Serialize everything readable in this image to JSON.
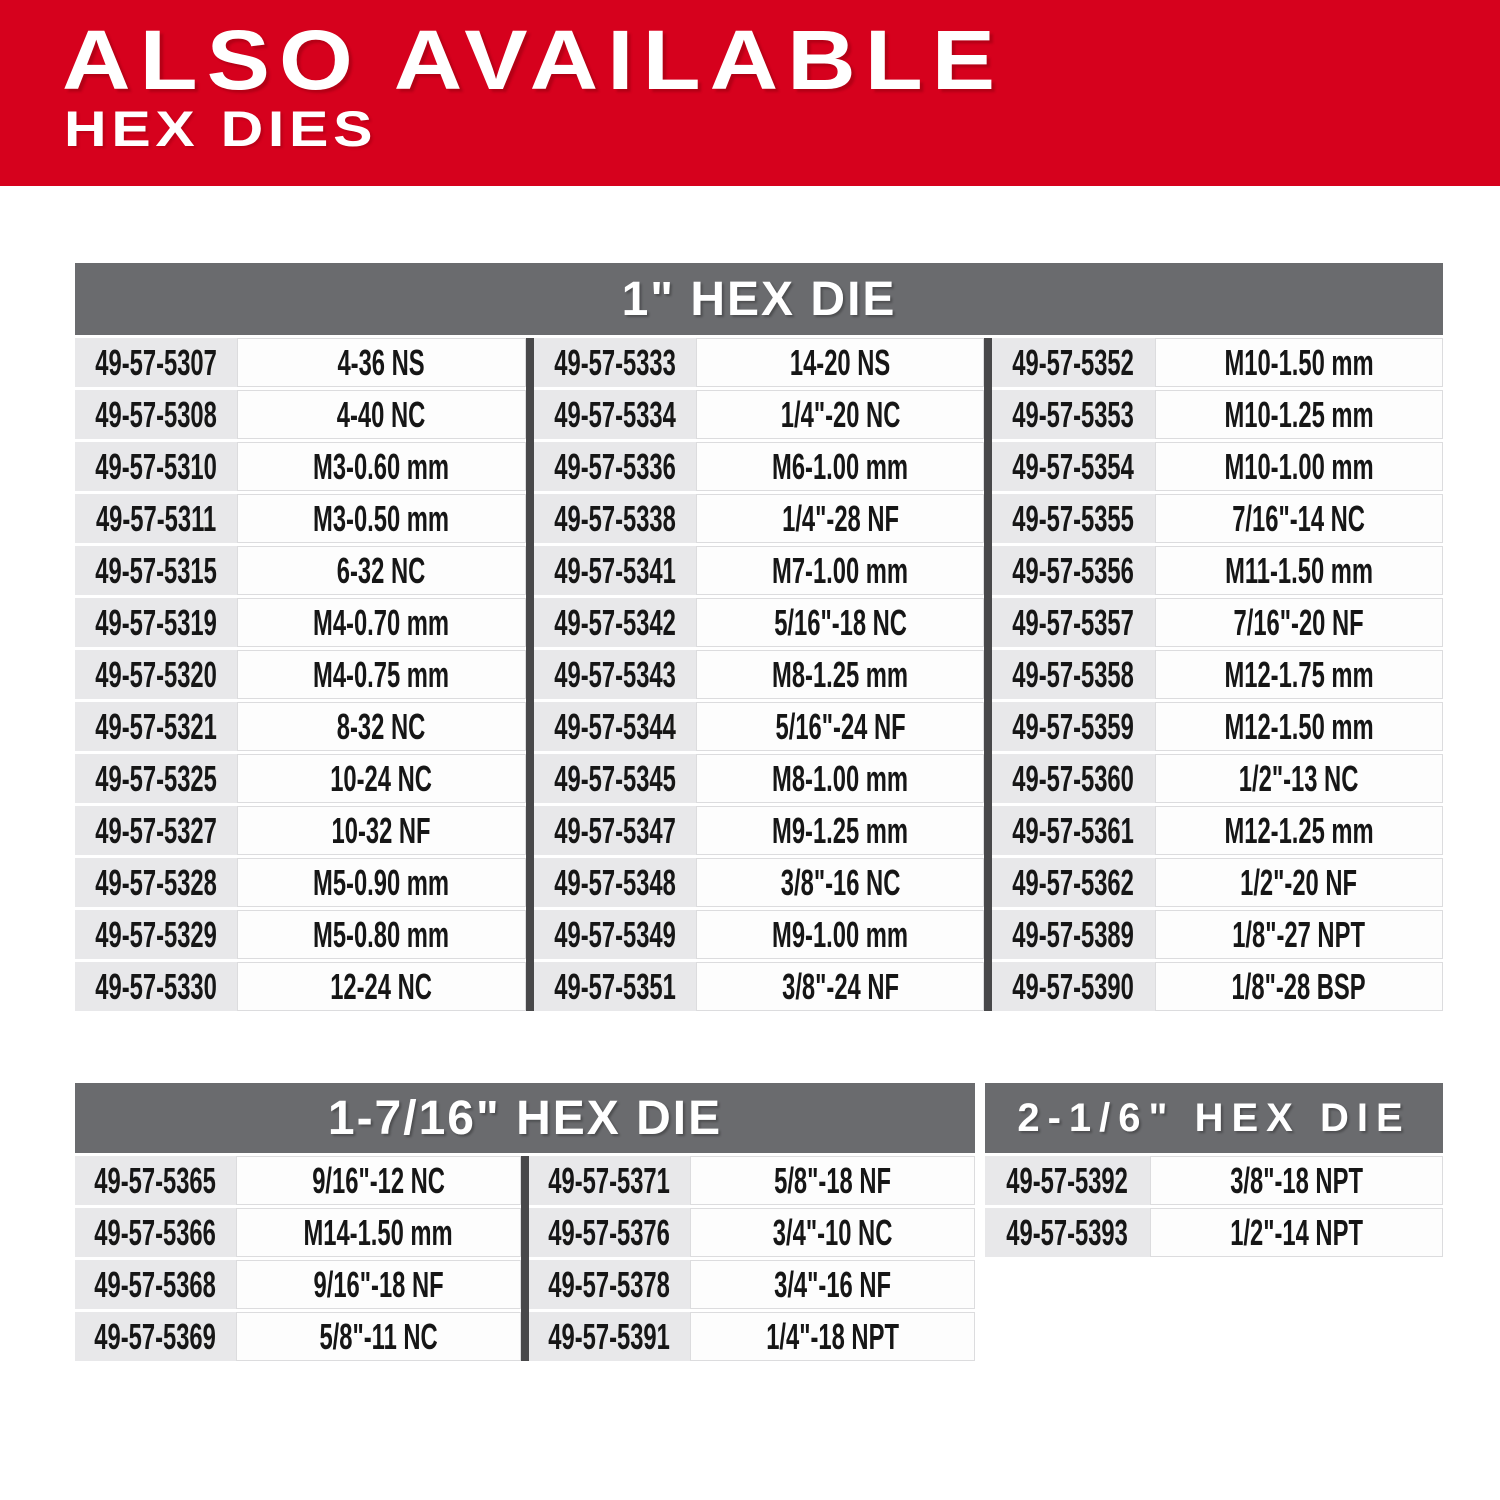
{
  "banner": {
    "title": "ALSO AVAILABLE",
    "subtitle": "HEX DIES"
  },
  "colors": {
    "brand_red": "#d6011d",
    "header_gray": "#6a6b6e",
    "divider_gray": "#48484a",
    "part_cell_bg": "#e8e8ea",
    "size_cell_bg": "#fdfdfd",
    "cell_border": "#dcdcde"
  },
  "tables": [
    {
      "title": "1\" HEX DIE",
      "groups": [
        [
          {
            "part": "49-57-5307",
            "size": "4-36 NS"
          },
          {
            "part": "49-57-5308",
            "size": "4-40 NC"
          },
          {
            "part": "49-57-5310",
            "size": "M3-0.60 mm"
          },
          {
            "part": "49-57-5311",
            "size": "M3-0.50 mm"
          },
          {
            "part": "49-57-5315",
            "size": "6-32 NC"
          },
          {
            "part": "49-57-5319",
            "size": "M4-0.70 mm"
          },
          {
            "part": "49-57-5320",
            "size": "M4-0.75 mm"
          },
          {
            "part": "49-57-5321",
            "size": "8-32 NC"
          },
          {
            "part": "49-57-5325",
            "size": "10-24 NC"
          },
          {
            "part": "49-57-5327",
            "size": "10-32 NF"
          },
          {
            "part": "49-57-5328",
            "size": "M5-0.90 mm"
          },
          {
            "part": "49-57-5329",
            "size": "M5-0.80 mm"
          },
          {
            "part": "49-57-5330",
            "size": "12-24 NC"
          }
        ],
        [
          {
            "part": "49-57-5333",
            "size": "14-20 NS"
          },
          {
            "part": "49-57-5334",
            "size": "1/4\"-20 NC"
          },
          {
            "part": "49-57-5336",
            "size": "M6-1.00 mm"
          },
          {
            "part": "49-57-5338",
            "size": "1/4\"-28 NF"
          },
          {
            "part": "49-57-5341",
            "size": "M7-1.00 mm"
          },
          {
            "part": "49-57-5342",
            "size": "5/16\"-18 NC"
          },
          {
            "part": "49-57-5343",
            "size": "M8-1.25 mm"
          },
          {
            "part": "49-57-5344",
            "size": "5/16\"-24 NF"
          },
          {
            "part": "49-57-5345",
            "size": "M8-1.00 mm"
          },
          {
            "part": "49-57-5347",
            "size": "M9-1.25 mm"
          },
          {
            "part": "49-57-5348",
            "size": "3/8\"-16 NC"
          },
          {
            "part": "49-57-5349",
            "size": "M9-1.00 mm"
          },
          {
            "part": "49-57-5351",
            "size": "3/8\"-24 NF"
          }
        ],
        [
          {
            "part": "49-57-5352",
            "size": "M10-1.50 mm"
          },
          {
            "part": "49-57-5353",
            "size": "M10-1.25 mm"
          },
          {
            "part": "49-57-5354",
            "size": "M10-1.00 mm"
          },
          {
            "part": "49-57-5355",
            "size": "7/16\"-14 NC"
          },
          {
            "part": "49-57-5356",
            "size": "M11-1.50 mm"
          },
          {
            "part": "49-57-5357",
            "size": "7/16\"-20 NF"
          },
          {
            "part": "49-57-5358",
            "size": "M12-1.75 mm"
          },
          {
            "part": "49-57-5359",
            "size": "M12-1.50 mm"
          },
          {
            "part": "49-57-5360",
            "size": "1/2\"-13 NC"
          },
          {
            "part": "49-57-5361",
            "size": "M12-1.25 mm"
          },
          {
            "part": "49-57-5362",
            "size": "1/2\"-20 NF"
          },
          {
            "part": "49-57-5389",
            "size": "1/8\"-27 NPT"
          },
          {
            "part": "49-57-5390",
            "size": "1/8\"-28 BSP"
          }
        ]
      ]
    },
    {
      "title": "1-7/16\" HEX DIE",
      "groups": [
        [
          {
            "part": "49-57-5365",
            "size": "9/16\"-12 NC"
          },
          {
            "part": "49-57-5366",
            "size": "M14-1.50 mm"
          },
          {
            "part": "49-57-5368",
            "size": "9/16\"-18 NF"
          },
          {
            "part": "49-57-5369",
            "size": "5/8\"-11 NC"
          }
        ],
        [
          {
            "part": "49-57-5371",
            "size": "5/8\"-18 NF"
          },
          {
            "part": "49-57-5376",
            "size": "3/4\"-10 NC"
          },
          {
            "part": "49-57-5378",
            "size": "3/4\"-16 NF"
          },
          {
            "part": "49-57-5391",
            "size": "1/4\"-18 NPT"
          }
        ]
      ]
    },
    {
      "title": "2-1/6\" HEX DIE",
      "groups": [
        [
          {
            "part": "49-57-5392",
            "size": "3/8\"-18 NPT"
          },
          {
            "part": "49-57-5393",
            "size": "1/2\"-14 NPT"
          }
        ]
      ]
    }
  ]
}
